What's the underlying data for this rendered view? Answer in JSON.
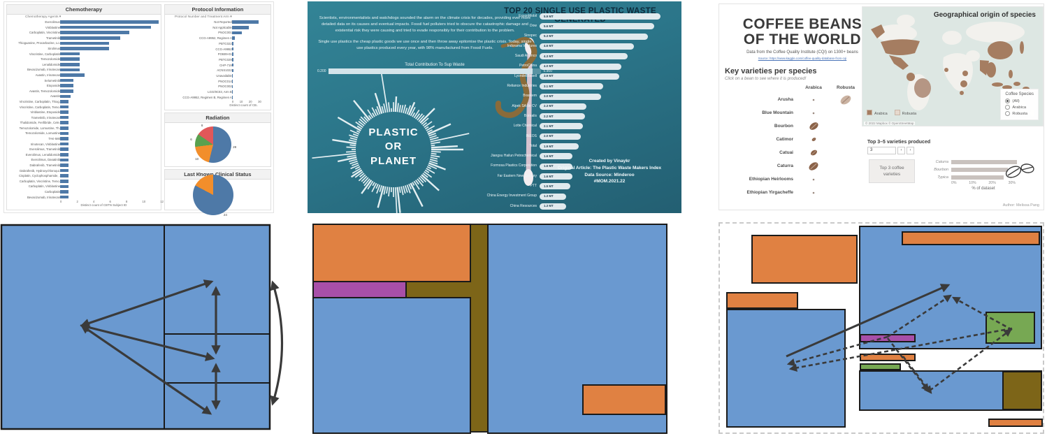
{
  "colors": {
    "bar_blue": "#4e79a7",
    "pie_blue": "#4e79a7",
    "pie_orange": "#f28e2b",
    "pie_green": "#59a14f",
    "pie_red": "#e15759",
    "teal_bg": "#2b7589",
    "plastic_bar": "#e0eaee",
    "diagram_blue": "#6a99d0",
    "diagram_orange": "#e08142",
    "diagram_purple": "#a84fa8",
    "diagram_olive": "#7d6518",
    "diagram_green": "#77a853",
    "arrow": "#3a3a3a",
    "map_land": "#f2f1ed",
    "map_highlight": "#a57d61",
    "map_bg": "#dde7e3",
    "bean_brown": "#8a6248",
    "bean_light": "#cbb3a2"
  },
  "clinical": {
    "chemo_title": "Chemotherapy",
    "chemo_sub": "Chemotherapy Agents ▾",
    "protocol_title": "Protocol Information",
    "protocol_sub": "Protocol Number and Treatment Arm ▾",
    "radiation_title": "Radiation",
    "status_title": "Last Known Clinical Status"
  },
  "plastic": {
    "title": "TOP 20 SINGLE USE PLASTIC WASTE GENERATED",
    "intro1": "Scientists, environmentalists and watchdogs sounded the alarm on the climate crisis for decades, providing ever more detailed data on its causes and eventual impacts. Fossil fuel polluters tried to obscure the catastrophic damage and existential risk they were causing and tried to evade responsibly for their contribution to the problem.",
    "intro2": "Single use plastics the cheap plastic goods we use once and then throw away epitomise the plastic crisis. Today, single use plastics produced every year, with 98% manufactured from Fossil Fuels.",
    "gauge": {
      "label": "Total Contribution To Sup Waste",
      "min": "0.200",
      "max": "5.900",
      "fill_pct": 96
    },
    "center_lines": [
      "PLASTIC",
      "OR",
      "PLANET"
    ],
    "caption_lines": [
      "Created by Vinaykr",
      "Original Article: The Plastic Waste Makers Index",
      "Data Source: Minderoo",
      "#MOM.2021.22"
    ]
  },
  "coffee": {
    "title_lines": [
      "COFFEE BEANS",
      "OF THE WORLD"
    ],
    "subtitle": "Data from the Coffee Quality Institute (CQI) on 1300+ beans",
    "source": "Source: https://www.kaggle.com/coffee-quality-database-from-cqi",
    "key_heading": "Key varieties per species",
    "key_note": "Click on a bean to see where it is produced!",
    "col_headers": [
      "Arabica",
      "Robusta"
    ],
    "varieties": [
      {
        "name": "Arusha",
        "arabica": 2,
        "robusta": 16
      },
      {
        "name": "Blue Mountain",
        "arabica": 2,
        "robusta": 0
      },
      {
        "name": "Bourbon",
        "arabica": 13,
        "robusta": 0
      },
      {
        "name": "Catimor",
        "arabica": 5,
        "robusta": 0
      },
      {
        "name": "Catuai",
        "arabica": 9,
        "robusta": 0
      },
      {
        "name": "Caturra",
        "arabica": 14,
        "robusta": 0
      },
      {
        "name": "Ethiopian Heirlooms",
        "arabica": 2,
        "robusta": 0
      },
      {
        "name": "Ethiopian Yirgacheffe",
        "arabica": 2,
        "robusta": 0
      }
    ],
    "map": {
      "title": "Geographical origin of species",
      "legend": [
        "Arabica",
        "Robusta"
      ],
      "attribution": "© 2022 Mapbox © OpenStreetMap",
      "species_filter": {
        "title": "Coffee Species",
        "options": [
          {
            "label": "(All)",
            "selected": true
          },
          {
            "label": "Arabica",
            "selected": false
          },
          {
            "label": "Robusta",
            "selected": false
          }
        ]
      }
    },
    "top_heading": "Top 3–5 varieties produced",
    "stepper_value": "3",
    "gray_button_lines": [
      "Top 3 coffee",
      "varieties"
    ],
    "author": "Author: Melissa Pang"
  },
  "chart_data": [
    {
      "id": "chemo_agents",
      "type": "bar",
      "orientation": "horizontal",
      "title": "Chemotherapy",
      "xlabel": "Distinct count of CBTN Subject ID",
      "xticks": [
        "0",
        "2",
        "4",
        "6",
        "8",
        "10",
        "12"
      ],
      "xlim": [
        0,
        12
      ],
      "categories": [
        "Everolimus",
        "Vinblastine",
        "Carboplatin, Vincristine",
        "Trametinib",
        "Thioguanine, Procarbazine, Lo.",
        "Sirolimus",
        "Vincristine, Carboplatin",
        "Temozolomide",
        "Lenalidomide",
        "Bevacizumab, Irinotecan",
        "Avastin, Irinotecan",
        "Selumetinib",
        "Etoposide",
        "Avastin, Temozolomide",
        "Avastin",
        "Vincristine, Carboplatin, Thiog.",
        "Vincristine, Carboplatin, Temo.",
        "Vinblastine, Etoposide",
        "Trametinib, Irinotecan",
        "Thalidomide, Fenfibride, Cele.",
        "Temozolomide, Lomustine, Th.",
        "Temozolomide, Lomustine",
        "TAK-580",
        "Irinotecan, Vinblastine",
        "Everolimus, Trametinib",
        "Everolimus, Lenalidomide",
        "Everolimus, Dasatinib",
        "Dabrafenib, Trametinib",
        "Dabrafenib, Hydroxychloroqui.",
        "Cisplatin, Cyclophosphamide, .",
        "Carboplatin, Vincristine, Temo.",
        "Carboplatin, Vinblastine",
        "Carboplatin",
        "Bevacizumab, Irinotecan"
      ],
      "values": [
        11.5,
        10.5,
        8,
        7,
        5.7,
        5.7,
        2.3,
        2.3,
        2.3,
        2.3,
        2.8,
        1.5,
        1.5,
        1.5,
        1.2,
        1,
        1,
        1,
        1,
        1,
        1,
        1,
        1,
        1,
        1,
        1,
        1,
        1,
        1,
        1,
        1,
        1,
        1,
        1
      ]
    },
    {
      "id": "protocol",
      "type": "bar",
      "orientation": "horizontal",
      "title": "Protocol Information",
      "xlabel": "Distinct count of CB..",
      "xticks": [
        "0",
        "10",
        "20",
        "30"
      ],
      "xlim": [
        0,
        30
      ],
      "categories": [
        "Not Reported",
        "Not Applicable",
        "PNOC001",
        "CCG-A9952, Regimen A",
        "PBTC022",
        "CCG-A9952",
        "POB09-01",
        "PBTC029",
        "CHP-719",
        "ACNS1022",
        "Unavailable",
        "PNOC014",
        "PNOC002",
        "LGG/9C03, Arm B",
        "CCG-A9952, Regimen B, Regimen A"
      ],
      "values": [
        29,
        18,
        11,
        3,
        2,
        2,
        2,
        2,
        2,
        2,
        1,
        1,
        1,
        1,
        1
      ]
    },
    {
      "id": "radiation",
      "type": "pie",
      "title": "Radiation",
      "labels": [
        "28",
        "10",
        "6",
        "8"
      ],
      "values": [
        28,
        10,
        6,
        8
      ],
      "slice_colors": [
        "#4e79a7",
        "#f28e2b",
        "#59a14f",
        "#e15759"
      ]
    },
    {
      "id": "clinical_status",
      "type": "pie",
      "title": "Last Known Clinical Status",
      "labels": [
        "24",
        "5"
      ],
      "values": [
        24,
        5
      ],
      "slice_colors": [
        "#4e79a7",
        "#f28e2b"
      ]
    },
    {
      "id": "plastic_top20",
      "type": "bar",
      "orientation": "horizontal",
      "title": "TOP 20 SINGLE USE PLASTIC WASTE GENERATED",
      "unit": "MT",
      "xlim": [
        0,
        5.9
      ],
      "categories": [
        "ExxonMobil",
        "Dow",
        "Sinopec",
        "Indorama Ventures",
        "Saudi Aramco",
        "PetroChina",
        "LyondellBasell",
        "Reliance Industries",
        "Braskem",
        "Alpek SA de CV",
        "Borealis",
        "Lotte Chemical",
        "INEOS",
        "Total",
        "Jiangsu Hailun Petrochemical",
        "Formosa Plastics Corporation",
        "Far Eastern New Century",
        "PTT",
        "China Energy Investment Group",
        "China Resources"
      ],
      "values": [
        5.9,
        5.6,
        5.3,
        4.6,
        4.3,
        4.0,
        3.9,
        3.1,
        3.0,
        2.3,
        2.2,
        2.1,
        2.0,
        1.9,
        1.6,
        1.6,
        1.6,
        1.5,
        1.3,
        1.3
      ]
    },
    {
      "id": "coffee_top_varieties",
      "type": "bar",
      "orientation": "horizontal",
      "title": "Top 3–5 varieties produced",
      "xlabel": "% of dataset",
      "xticks": [
        "0%",
        "10%",
        "20%",
        "30%"
      ],
      "xlim": [
        0,
        36
      ],
      "categories": [
        "Caturra",
        "Bourbon",
        "Typica"
      ],
      "values": [
        36,
        31,
        29
      ]
    }
  ]
}
